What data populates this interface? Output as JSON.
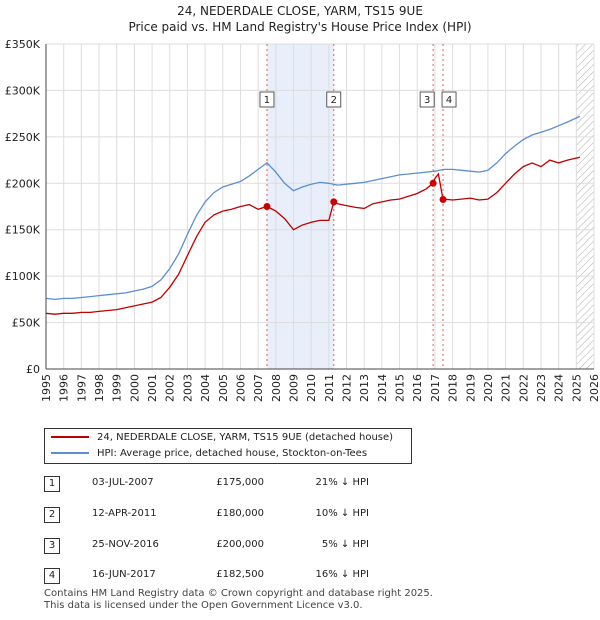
{
  "chart_data": {
    "type": "line",
    "title": "24, NEDERDALE CLOSE, YARM, TS15 9UE",
    "subtitle": "Price paid vs. HM Land Registry's House Price Index (HPI)",
    "xlabel": "",
    "ylabel": "",
    "xlim": [
      1995,
      2026
    ],
    "ylim": [
      0,
      350000
    ],
    "x_ticks": [
      "1995",
      "1996",
      "1997",
      "1998",
      "1999",
      "2000",
      "2001",
      "2002",
      "2003",
      "2004",
      "2005",
      "2006",
      "2007",
      "2008",
      "2009",
      "2010",
      "2011",
      "2012",
      "2013",
      "2014",
      "2015",
      "2016",
      "2017",
      "2018",
      "2019",
      "2020",
      "2021",
      "2022",
      "2023",
      "2024",
      "2025",
      "2026"
    ],
    "y_ticks": [
      {
        "value": 0,
        "label": "£0"
      },
      {
        "value": 50000,
        "label": "£50K"
      },
      {
        "value": 100000,
        "label": "£100K"
      },
      {
        "value": 150000,
        "label": "£150K"
      },
      {
        "value": 200000,
        "label": "£200K"
      },
      {
        "value": 250000,
        "label": "£250K"
      },
      {
        "value": 300000,
        "label": "£300K"
      },
      {
        "value": 350000,
        "label": "£350K"
      }
    ],
    "grid": true,
    "shaded_period": [
      2007.5,
      2011.28
    ],
    "forecast_start": 2025.0,
    "series": [
      {
        "name": "24, NEDERDALE CLOSE, YARM, TS15 9UE (detached house)",
        "color": "#c00000",
        "x": [
          1995,
          1995.5,
          1996,
          1996.5,
          1997,
          1997.5,
          1998,
          1998.5,
          1999,
          1999.5,
          2000,
          2000.5,
          2001,
          2001.5,
          2002,
          2002.5,
          2003,
          2003.5,
          2004,
          2004.5,
          2005,
          2005.5,
          2006,
          2006.5,
          2007,
          2007.5,
          2008,
          2008.5,
          2009,
          2009.5,
          2010,
          2010.5,
          2011,
          2011.28,
          2011.5,
          2012,
          2012.5,
          2013,
          2013.5,
          2014,
          2014.5,
          2015,
          2015.5,
          2016,
          2016.5,
          2016.9,
          2017,
          2017.2,
          2017.46,
          2017.5,
          2018,
          2018.5,
          2019,
          2019.5,
          2020,
          2020.5,
          2021,
          2021.5,
          2022,
          2022.5,
          2023,
          2023.5,
          2024,
          2024.5,
          2025.2
        ],
        "values": [
          60000,
          59000,
          60000,
          60000,
          61000,
          61000,
          62000,
          63000,
          64000,
          66000,
          68000,
          70000,
          72000,
          77000,
          88000,
          102000,
          122000,
          142000,
          158000,
          166000,
          170000,
          172000,
          175000,
          177000,
          172000,
          175000,
          170000,
          162000,
          150000,
          155000,
          158000,
          160000,
          160000,
          180000,
          178000,
          176000,
          174000,
          173000,
          178000,
          180000,
          182000,
          183000,
          186000,
          189000,
          194000,
          200000,
          205000,
          210000,
          182500,
          183000,
          182000,
          183000,
          184000,
          182000,
          183000,
          190000,
          200000,
          210000,
          218000,
          222000,
          218000,
          225000,
          222000,
          225000,
          228000
        ]
      },
      {
        "name": "HPI: Average price, detached house, Stockton-on-Tees",
        "color": "#5b8fd0",
        "x": [
          1995,
          1995.5,
          1996,
          1996.5,
          1997,
          1997.5,
          1998,
          1998.5,
          1999,
          1999.5,
          2000,
          2000.5,
          2001,
          2001.5,
          2002,
          2002.5,
          2003,
          2003.5,
          2004,
          2004.5,
          2005,
          2005.5,
          2006,
          2006.5,
          2007,
          2007.5,
          2008,
          2008.5,
          2009,
          2009.5,
          2010,
          2010.5,
          2011,
          2011.5,
          2012,
          2012.5,
          2013,
          2013.5,
          2014,
          2014.5,
          2015,
          2015.5,
          2016,
          2016.5,
          2017,
          2017.5,
          2018,
          2018.5,
          2019,
          2019.5,
          2020,
          2020.5,
          2021,
          2021.5,
          2022,
          2022.5,
          2023,
          2023.5,
          2024,
          2024.5,
          2025.2
        ],
        "values": [
          76000,
          75000,
          76000,
          76000,
          77000,
          78000,
          79000,
          80000,
          81000,
          82000,
          84000,
          86000,
          89000,
          96000,
          108000,
          124000,
          145000,
          165000,
          180000,
          190000,
          196000,
          199000,
          202000,
          208000,
          215000,
          222000,
          212000,
          200000,
          192000,
          196000,
          199000,
          201000,
          200000,
          198000,
          199000,
          200000,
          201000,
          203000,
          205000,
          207000,
          209000,
          210000,
          211000,
          212000,
          213000,
          215000,
          215000,
          214000,
          213000,
          212000,
          214000,
          222000,
          232000,
          240000,
          247000,
          252000,
          255000,
          258000,
          262000,
          266000,
          272000
        ]
      }
    ],
    "sales": [
      {
        "id": "1",
        "x": 2007.5,
        "value": 175000,
        "date": "03-JUL-2007",
        "price": "£175,000",
        "hpi": "21% ↓ HPI"
      },
      {
        "id": "2",
        "x": 2011.28,
        "value": 180000,
        "date": "12-APR-2011",
        "price": "£180,000",
        "hpi": "10% ↓ HPI"
      },
      {
        "id": "3",
        "x": 2016.9,
        "value": 200000,
        "date": "25-NOV-2016",
        "price": "£200,000",
        "hpi": "5% ↓ HPI"
      },
      {
        "id": "4",
        "x": 2017.46,
        "value": 182500,
        "date": "16-JUN-2017",
        "price": "£182,500",
        "hpi": "16% ↓ HPI"
      }
    ],
    "legend_position": "below"
  },
  "legend": {
    "red_label": "24, NEDERDALE CLOSE, YARM, TS15 9UE (detached house)",
    "blue_label": "HPI: Average price, detached house, Stockton-on-Tees"
  },
  "footer": {
    "line1": "Contains HM Land Registry data © Crown copyright and database right 2025.",
    "line2": "This data is licensed under the Open Government Licence v3.0."
  }
}
